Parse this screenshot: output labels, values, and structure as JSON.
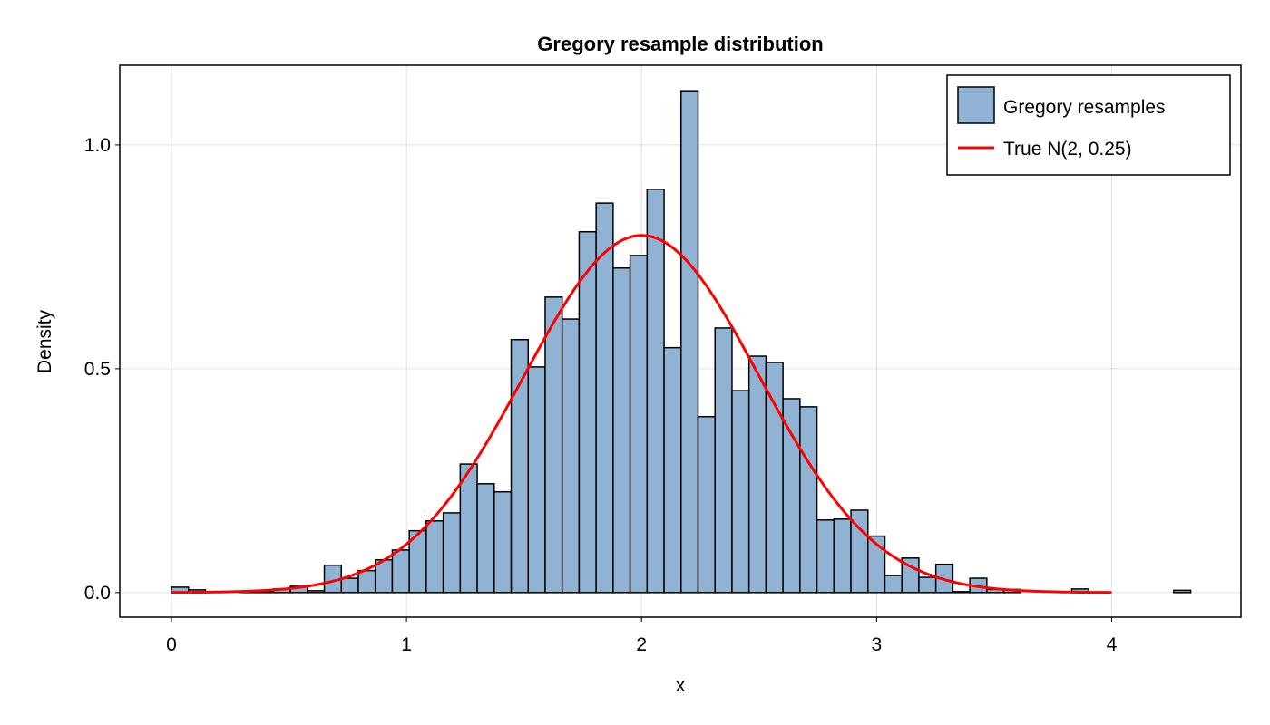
{
  "chart_data": {
    "type": "bar",
    "title": "Gregory resample distribution",
    "xlabel": "x",
    "ylabel": "Density",
    "xlim": [
      -0.22,
      4.55
    ],
    "ylim": [
      -0.055,
      1.178
    ],
    "xticks": [
      0,
      1,
      2,
      3,
      4
    ],
    "xtick_labels": [
      "0",
      "1",
      "2",
      "3",
      "4"
    ],
    "yticks": [
      0.0,
      0.5,
      1.0
    ],
    "ytick_labels": [
      "0.0",
      "0.5",
      "1.0"
    ],
    "grid": true,
    "legend_position": "top-right",
    "histogram": {
      "name": "Gregory resamples",
      "bin_start": 0.0,
      "bin_end": 4.336,
      "bin_count": 60,
      "density": [
        0.012,
        0.006,
        0,
        0,
        0.002,
        0.003,
        0.008,
        0.014,
        0.004,
        0.061,
        0.032,
        0.049,
        0.073,
        0.095,
        0.138,
        0.16,
        0.178,
        0.287,
        0.243,
        0.225,
        0.565,
        0.504,
        0.66,
        0.611,
        0.806,
        0.87,
        0.725,
        0.753,
        0.901,
        0.547,
        1.121,
        0.393,
        0.591,
        0.451,
        0.528,
        0.514,
        0.433,
        0.415,
        0.162,
        0.164,
        0.184,
        0.126,
        0.038,
        0.077,
        0.034,
        0.063,
        0.002,
        0.032,
        0.007,
        0.007,
        0,
        0,
        0,
        0.008,
        0,
        0,
        0,
        0,
        0,
        0.005
      ],
      "fill_color": "#91b3d3",
      "edge_color": "#000000"
    },
    "curve": {
      "name": "True N(2, 0.25)",
      "mean": 2,
      "variance": 0.25,
      "x_range": [
        0,
        4
      ],
      "color": "#ff0000"
    }
  }
}
